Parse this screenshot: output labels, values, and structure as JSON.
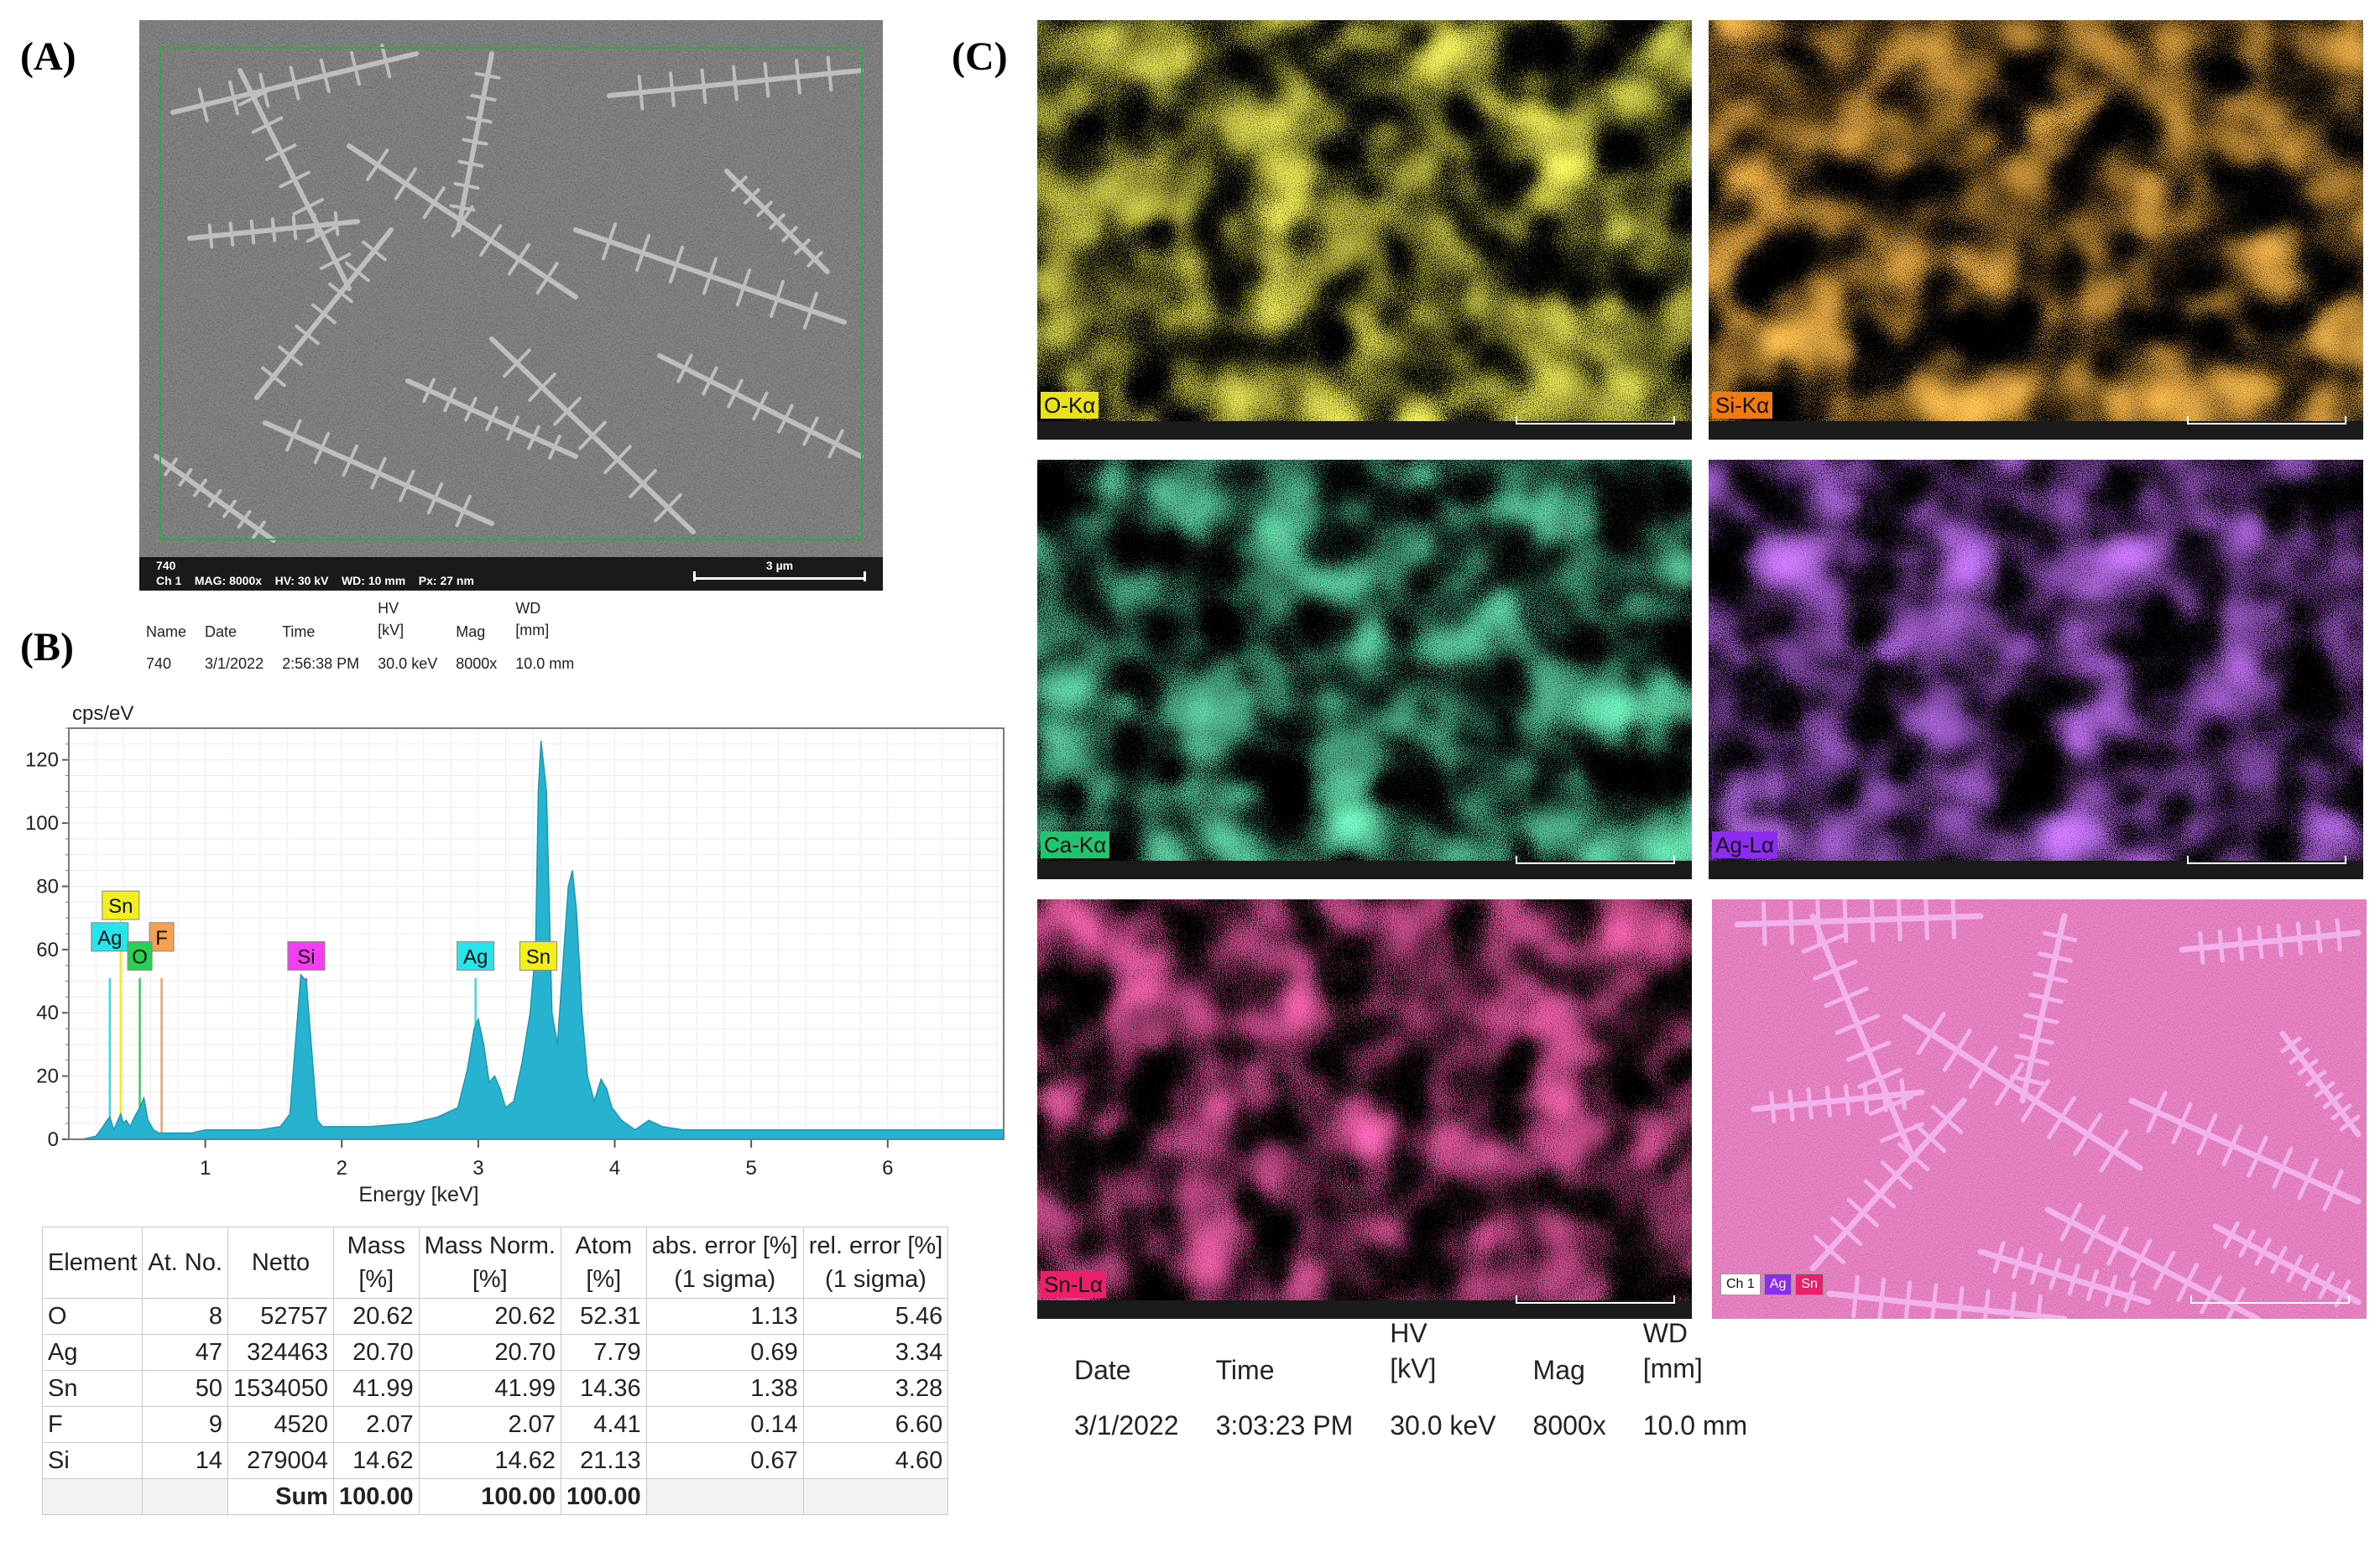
{
  "panels": {
    "a": "(A)",
    "b": "(B)",
    "c": "(C)"
  },
  "sem": {
    "line1": "740",
    "line2": "Ch 1    MAG: 8000x    HV: 30 kV    WD: 10 mm    Px: 27 nm",
    "scale": "3 µm"
  },
  "meta_small": {
    "headers": [
      "Name",
      "Date",
      "Time",
      "HV\n[kV]",
      "Mag",
      "WD\n[mm]"
    ],
    "values": [
      "740",
      "3/1/2022",
      "2:56:38 PM",
      "30.0 keV",
      "8000x",
      "10.0 mm"
    ]
  },
  "chart_data": {
    "type": "line",
    "ylabel": "cps/eV",
    "xlabel": "Energy [keV]",
    "xlim": [
      0,
      6.85
    ],
    "ylim": [
      0,
      130
    ],
    "xticks": [
      1,
      2,
      3,
      4,
      5,
      6
    ],
    "yticks": [
      0,
      20,
      40,
      60,
      80,
      100,
      120
    ],
    "grid": true,
    "colors": {
      "fill": "#27b3cf",
      "stroke": "#1c98b3"
    },
    "series": [
      {
        "x": [
          0.1,
          0.2,
          0.25,
          0.28,
          0.3,
          0.33,
          0.36,
          0.38,
          0.4,
          0.42,
          0.45,
          0.48,
          0.52,
          0.55,
          0.58,
          0.62,
          0.66,
          0.7,
          0.78,
          0.9,
          1.0,
          1.2,
          1.4,
          1.55,
          1.62,
          1.66,
          1.7,
          1.74,
          1.78,
          1.82,
          1.86,
          1.9,
          2.0,
          2.2,
          2.5,
          2.7,
          2.85,
          2.92,
          2.97,
          3.0,
          3.04,
          3.08,
          3.12,
          3.16,
          3.2,
          3.26,
          3.32,
          3.38,
          3.42,
          3.44,
          3.46,
          3.5,
          3.54,
          3.58,
          3.62,
          3.66,
          3.69,
          3.72,
          3.76,
          3.8,
          3.85,
          3.9,
          3.94,
          3.98,
          4.05,
          4.15,
          4.25,
          4.35,
          4.5,
          4.8,
          5.2,
          6.0,
          6.85
        ],
        "y": [
          0,
          1,
          4,
          6,
          7,
          3,
          6,
          8,
          5,
          6,
          4,
          7,
          10,
          13,
          6,
          3,
          2,
          2,
          2,
          2,
          3,
          3,
          3,
          4,
          8,
          30,
          52,
          50,
          28,
          6,
          4,
          4,
          4,
          4,
          5,
          7,
          10,
          22,
          35,
          38,
          30,
          18,
          20,
          16,
          10,
          12,
          24,
          40,
          60,
          110,
          126,
          110,
          40,
          30,
          55,
          80,
          85,
          72,
          40,
          20,
          12,
          19,
          16,
          10,
          6,
          3,
          6,
          4,
          3,
          3,
          3,
          3,
          3
        ]
      }
    ],
    "markers": [
      {
        "label": "Sn",
        "x": 0.38,
        "y": 74,
        "color": "#f2ef1c",
        "line_top": 74
      },
      {
        "label": "Ag",
        "x": 0.3,
        "y": 64,
        "color": "#27e3ea",
        "line_top": 51
      },
      {
        "label": "F",
        "x": 0.68,
        "y": 64,
        "color": "#f6a054",
        "line_top": 51
      },
      {
        "label": "O",
        "x": 0.52,
        "y": 58,
        "color": "#26d155",
        "line_top": 51
      },
      {
        "label": "Si",
        "x": 1.74,
        "y": 58,
        "color": "#f03ef0",
        "line_top": 51
      },
      {
        "label": "Ag",
        "x": 2.98,
        "y": 58,
        "color": "#27e3ea",
        "line_top": 51
      },
      {
        "label": "Sn",
        "x": 3.44,
        "y": 58,
        "color": "#f2ef1c",
        "line_top": 51
      }
    ]
  },
  "elem_table": {
    "headers": [
      "Element",
      "At. No.",
      "Netto",
      "Mass\n[%]",
      "Mass Norm.\n[%]",
      "Atom\n[%]",
      "abs. error [%]\n(1 sigma)",
      "rel. error [%]\n(1 sigma)"
    ],
    "rows": [
      [
        "O",
        "8",
        "52757",
        "20.62",
        "20.62",
        "52.31",
        "1.13",
        "5.46"
      ],
      [
        "Ag",
        "47",
        "324463",
        "20.70",
        "20.70",
        "7.79",
        "0.69",
        "3.34"
      ],
      [
        "Sn",
        "50",
        "1534050",
        "41.99",
        "41.99",
        "14.36",
        "1.38",
        "3.28"
      ],
      [
        "F",
        "9",
        "4520",
        "2.07",
        "2.07",
        "4.41",
        "0.14",
        "6.60"
      ],
      [
        "Si",
        "14",
        "279004",
        "14.62",
        "14.62",
        "21.13",
        "0.67",
        "4.60"
      ]
    ],
    "sum": {
      "label": "Sum",
      "mass": "100.00",
      "mass_norm": "100.00",
      "atom": "100.00"
    }
  },
  "maps": [
    {
      "label": "O-Kα",
      "color": "#e8e21a",
      "label_bg": "#e8e21a"
    },
    {
      "label": "Si-Kα",
      "color": "#f07a12",
      "label_bg": "#f07a12"
    },
    {
      "label": "Ca-Kα",
      "color": "#22c470",
      "label_bg": "#22c470"
    },
    {
      "label": "Ag-Lα",
      "color": "#8c2cf0",
      "label_bg": "#8c2cf0"
    },
    {
      "label": "Sn-Lα",
      "color": "#ec1f6a",
      "label_bg": "#ec1f6a"
    }
  ],
  "overlay": {
    "chips": [
      "Ch 1",
      "Ag",
      "Sn"
    ],
    "chip_colors": [
      "#ffffff",
      "#8c2cf0",
      "#ec1f6a"
    ]
  },
  "meta_big": {
    "headers": [
      "Date",
      "Time",
      "HV\n[kV]",
      "Mag",
      "WD\n[mm]"
    ],
    "values": [
      "3/1/2022",
      "3:03:23 PM",
      "30.0 keV",
      "8000x",
      "10.0 mm"
    ]
  }
}
